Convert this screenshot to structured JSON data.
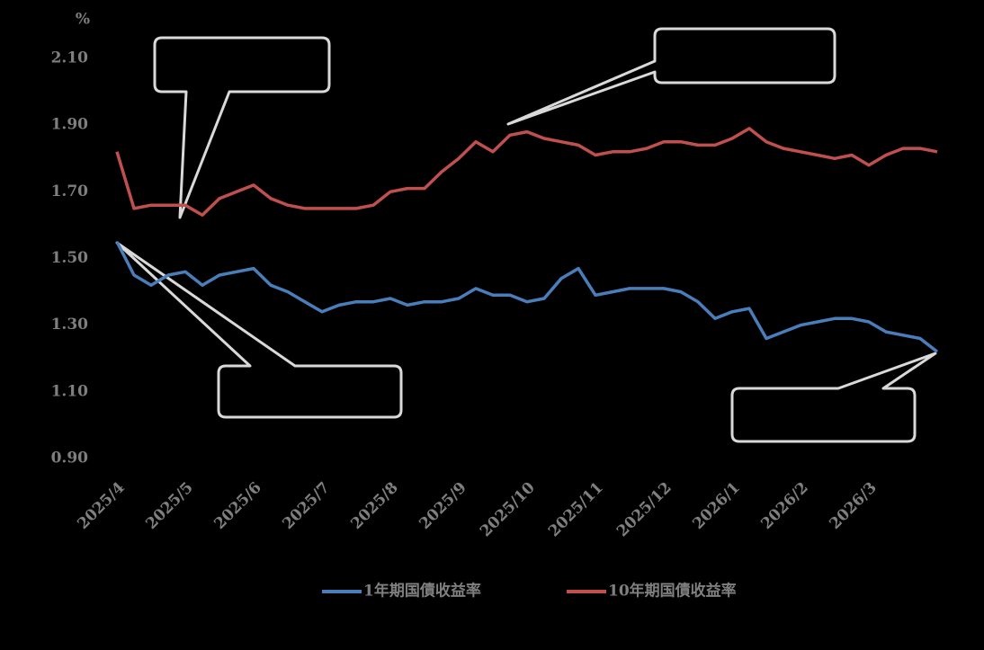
{
  "chart_data": {
    "type": "line",
    "y_unit": "%",
    "categories": [
      "2025/4",
      null,
      null,
      null,
      "2025/5",
      null,
      null,
      null,
      "2025/6",
      null,
      null,
      null,
      "2025/7",
      null,
      null,
      null,
      "2025/8",
      null,
      null,
      null,
      "2025/9",
      null,
      null,
      null,
      "2025/10",
      null,
      null,
      null,
      "2025/11",
      null,
      null,
      null,
      "2025/12",
      null,
      null,
      null,
      "2026/1",
      null,
      null,
      null,
      "2026/2",
      null,
      null,
      null,
      "2026/3",
      null,
      null,
      null,
      null
    ],
    "series": [
      {
        "name": "1年期国債收益率",
        "color": "#4a7ebb",
        "values": [
          1.55,
          1.45,
          1.42,
          1.45,
          1.46,
          1.42,
          1.45,
          1.46,
          1.47,
          1.42,
          1.4,
          1.37,
          1.34,
          1.36,
          1.37,
          1.37,
          1.38,
          1.36,
          1.37,
          1.37,
          1.38,
          1.41,
          1.39,
          1.39,
          1.37,
          1.38,
          1.44,
          1.47,
          1.39,
          1.4,
          1.41,
          1.41,
          1.41,
          1.4,
          1.37,
          1.32,
          1.34,
          1.35,
          1.26,
          1.28,
          1.3,
          1.31,
          1.32,
          1.32,
          1.31,
          1.28,
          1.27,
          1.26,
          1.22
        ]
      },
      {
        "name": "10年期国債收益率",
        "color": "#c0504d",
        "values": [
          1.82,
          1.65,
          1.66,
          1.66,
          1.66,
          1.63,
          1.68,
          1.7,
          1.72,
          1.68,
          1.66,
          1.65,
          1.65,
          1.65,
          1.65,
          1.66,
          1.7,
          1.71,
          1.71,
          1.76,
          1.8,
          1.85,
          1.82,
          1.87,
          1.88,
          1.86,
          1.85,
          1.84,
          1.81,
          1.82,
          1.82,
          1.83,
          1.85,
          1.85,
          1.84,
          1.84,
          1.86,
          1.89,
          1.85,
          1.83,
          1.82,
          1.81,
          1.8,
          1.81,
          1.78,
          1.81,
          1.83,
          1.83,
          1.82
        ]
      }
    ],
    "ylim": [
      0.9,
      2.1
    ],
    "yticks": [
      {
        "value": 0.9,
        "label": "0.90"
      },
      {
        "value": 1.1,
        "label": "1.10"
      },
      {
        "value": 1.3,
        "label": "1.30"
      },
      {
        "value": 1.5,
        "label": "1.50"
      },
      {
        "value": 1.7,
        "label": "1.70"
      },
      {
        "value": 1.9,
        "label": "1.90"
      },
      {
        "value": 2.1,
        "label": "2.10"
      }
    ],
    "grid": false
  }
}
